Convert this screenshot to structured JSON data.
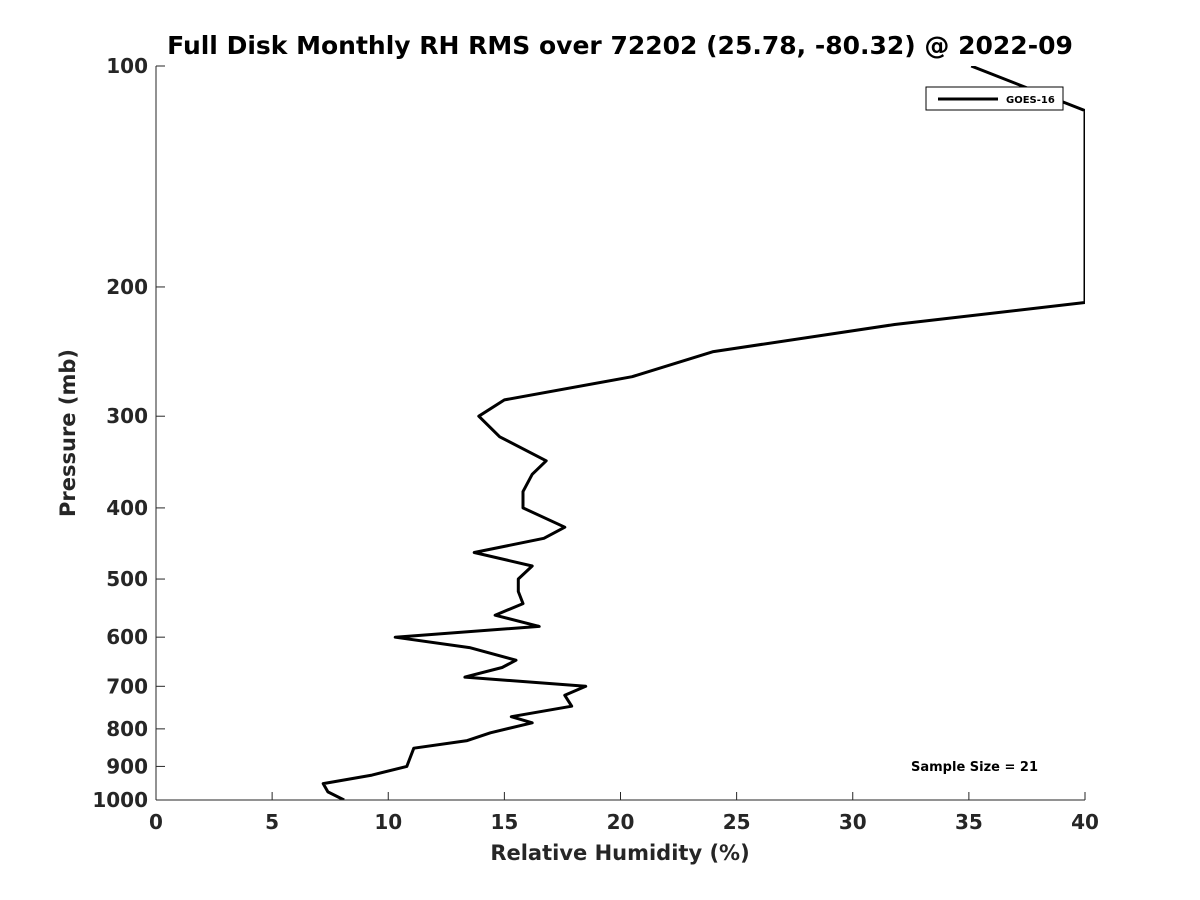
{
  "chart_data": {
    "type": "line",
    "title": "Full Disk Monthly RH RMS over 72202 (25.78, -80.32) @ 2022-09",
    "xlabel": "Relative Humidity (%)",
    "ylabel": "Pressure (mb)",
    "xlim": [
      0,
      40
    ],
    "ylim": [
      1000,
      100
    ],
    "yscale": "log",
    "y_reversed": true,
    "grid": false,
    "legend_position": "top-right",
    "x_ticks": [
      "0",
      "5",
      "10",
      "15",
      "20",
      "25",
      "30",
      "35",
      "40"
    ],
    "y_ticks": [
      "100",
      "200",
      "300",
      "400",
      "500",
      "600",
      "700",
      "800",
      "900",
      "1000"
    ],
    "series": [
      {
        "name": "GOES-16",
        "color": "#000000",
        "points": [
          {
            "x": 8.1,
            "y": 1000
          },
          {
            "x": 7.4,
            "y": 975
          },
          {
            "x": 7.2,
            "y": 950
          },
          {
            "x": 9.3,
            "y": 925
          },
          {
            "x": 10.8,
            "y": 900
          },
          {
            "x": 11.1,
            "y": 850
          },
          {
            "x": 13.4,
            "y": 830
          },
          {
            "x": 14.4,
            "y": 810
          },
          {
            "x": 16.2,
            "y": 785
          },
          {
            "x": 15.3,
            "y": 770
          },
          {
            "x": 17.9,
            "y": 745
          },
          {
            "x": 17.6,
            "y": 720
          },
          {
            "x": 18.5,
            "y": 700
          },
          {
            "x": 13.3,
            "y": 680
          },
          {
            "x": 14.9,
            "y": 660
          },
          {
            "x": 15.5,
            "y": 645
          },
          {
            "x": 13.5,
            "y": 620
          },
          {
            "x": 10.3,
            "y": 600
          },
          {
            "x": 16.5,
            "y": 580
          },
          {
            "x": 14.6,
            "y": 560
          },
          {
            "x": 15.8,
            "y": 540
          },
          {
            "x": 15.6,
            "y": 520
          },
          {
            "x": 15.6,
            "y": 500
          },
          {
            "x": 16.2,
            "y": 480
          },
          {
            "x": 13.7,
            "y": 460
          },
          {
            "x": 16.7,
            "y": 440
          },
          {
            "x": 17.6,
            "y": 425
          },
          {
            "x": 15.8,
            "y": 400
          },
          {
            "x": 15.8,
            "y": 380
          },
          {
            "x": 16.2,
            "y": 360
          },
          {
            "x": 16.8,
            "y": 345
          },
          {
            "x": 14.8,
            "y": 320
          },
          {
            "x": 13.9,
            "y": 300
          },
          {
            "x": 15.0,
            "y": 285
          },
          {
            "x": 20.5,
            "y": 265
          },
          {
            "x": 24.0,
            "y": 245
          },
          {
            "x": 31.8,
            "y": 225
          },
          {
            "x": 40.0,
            "y": 210
          },
          {
            "x": 40.0,
            "y": 115
          },
          {
            "x": 35.1,
            "y": 100
          }
        ]
      }
    ],
    "legend": {
      "entries": [
        "GOES-16"
      ]
    },
    "annotation": "Sample Size = 21"
  }
}
